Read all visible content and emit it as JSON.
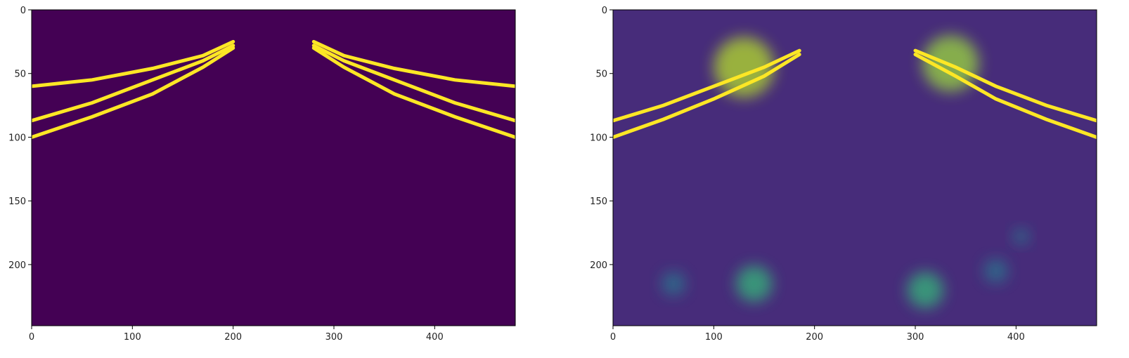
{
  "chart_data": [
    {
      "type": "heatmap",
      "colormap": "viridis",
      "xlim": [
        0,
        480
      ],
      "ylim": [
        248,
        0
      ],
      "x_ticks": [
        0,
        100,
        200,
        300,
        400
      ],
      "y_ticks": [
        0,
        50,
        100,
        150,
        200
      ],
      "x_tick_labels": [
        "0",
        "100",
        "200",
        "300",
        "400"
      ],
      "y_tick_labels": [
        "0",
        "50",
        "100",
        "150",
        "200"
      ],
      "title": "",
      "xlabel": "",
      "ylabel": "",
      "grid": false,
      "background_color": "#440154",
      "lane_lines": [
        {
          "points": [
            [
              0,
              100
            ],
            [
              60,
              84
            ],
            [
              120,
              66
            ],
            [
              170,
              45
            ],
            [
              200,
              30
            ]
          ],
          "color": "#fde725"
        },
        {
          "points": [
            [
              0,
              87
            ],
            [
              60,
              73
            ],
            [
              120,
              55
            ],
            [
              170,
              40
            ],
            [
              200,
              28
            ]
          ],
          "color": "#fde725"
        },
        {
          "points": [
            [
              0,
              60
            ],
            [
              60,
              55
            ],
            [
              120,
              46
            ],
            [
              170,
              36
            ],
            [
              200,
              25
            ]
          ],
          "color": "#fde725"
        },
        {
          "points": [
            [
              480,
              100
            ],
            [
              420,
              84
            ],
            [
              360,
              66
            ],
            [
              310,
              45
            ],
            [
              280,
              30
            ]
          ],
          "color": "#fde725"
        },
        {
          "points": [
            [
              480,
              87
            ],
            [
              420,
              73
            ],
            [
              360,
              55
            ],
            [
              310,
              40
            ],
            [
              280,
              28
            ]
          ],
          "color": "#fde725"
        },
        {
          "points": [
            [
              480,
              60
            ],
            [
              420,
              55
            ],
            [
              360,
              46
            ],
            [
              310,
              36
            ],
            [
              280,
              25
            ]
          ],
          "color": "#fde725"
        }
      ],
      "hotspots": []
    },
    {
      "type": "heatmap",
      "colormap": "viridis",
      "xlim": [
        0,
        480
      ],
      "ylim": [
        248,
        0
      ],
      "x_ticks": [
        0,
        100,
        200,
        300,
        400
      ],
      "y_ticks": [
        0,
        50,
        100,
        150,
        200
      ],
      "x_tick_labels": [
        "0",
        "100",
        "200",
        "300",
        "400"
      ],
      "y_tick_labels": [
        "0",
        "50",
        "100",
        "150",
        "200"
      ],
      "title": "",
      "xlabel": "",
      "ylabel": "",
      "grid": false,
      "background_color": "#472c7a",
      "lane_lines": [
        {
          "points": [
            [
              0,
              100
            ],
            [
              50,
              86
            ],
            [
              100,
              70
            ],
            [
              150,
              52
            ],
            [
              185,
              35
            ]
          ],
          "color": "#fde725"
        },
        {
          "points": [
            [
              0,
              87
            ],
            [
              50,
              75
            ],
            [
              100,
              60
            ],
            [
              150,
              45
            ],
            [
              185,
              32
            ]
          ],
          "color": "#fde725"
        },
        {
          "points": [
            [
              480,
              100
            ],
            [
              430,
              86
            ],
            [
              380,
              70
            ],
            [
              340,
              52
            ],
            [
              300,
              35
            ]
          ],
          "color": "#fde725"
        },
        {
          "points": [
            [
              480,
              87
            ],
            [
              430,
              75
            ],
            [
              380,
              60
            ],
            [
              340,
              45
            ],
            [
              300,
              32
            ]
          ],
          "color": "#fde725"
        }
      ],
      "hotspots": [
        {
          "x": 130,
          "y": 45,
          "r": 30,
          "color": "#b5de2b"
        },
        {
          "x": 335,
          "y": 42,
          "r": 28,
          "color": "#9bd93c"
        },
        {
          "x": 140,
          "y": 215,
          "r": 18,
          "color": "#35b779"
        },
        {
          "x": 310,
          "y": 220,
          "r": 18,
          "color": "#35b779"
        },
        {
          "x": 60,
          "y": 215,
          "r": 12,
          "color": "#2a788e"
        },
        {
          "x": 380,
          "y": 205,
          "r": 12,
          "color": "#2a788e"
        },
        {
          "x": 405,
          "y": 178,
          "r": 8,
          "color": "#2a788e"
        }
      ]
    }
  ]
}
